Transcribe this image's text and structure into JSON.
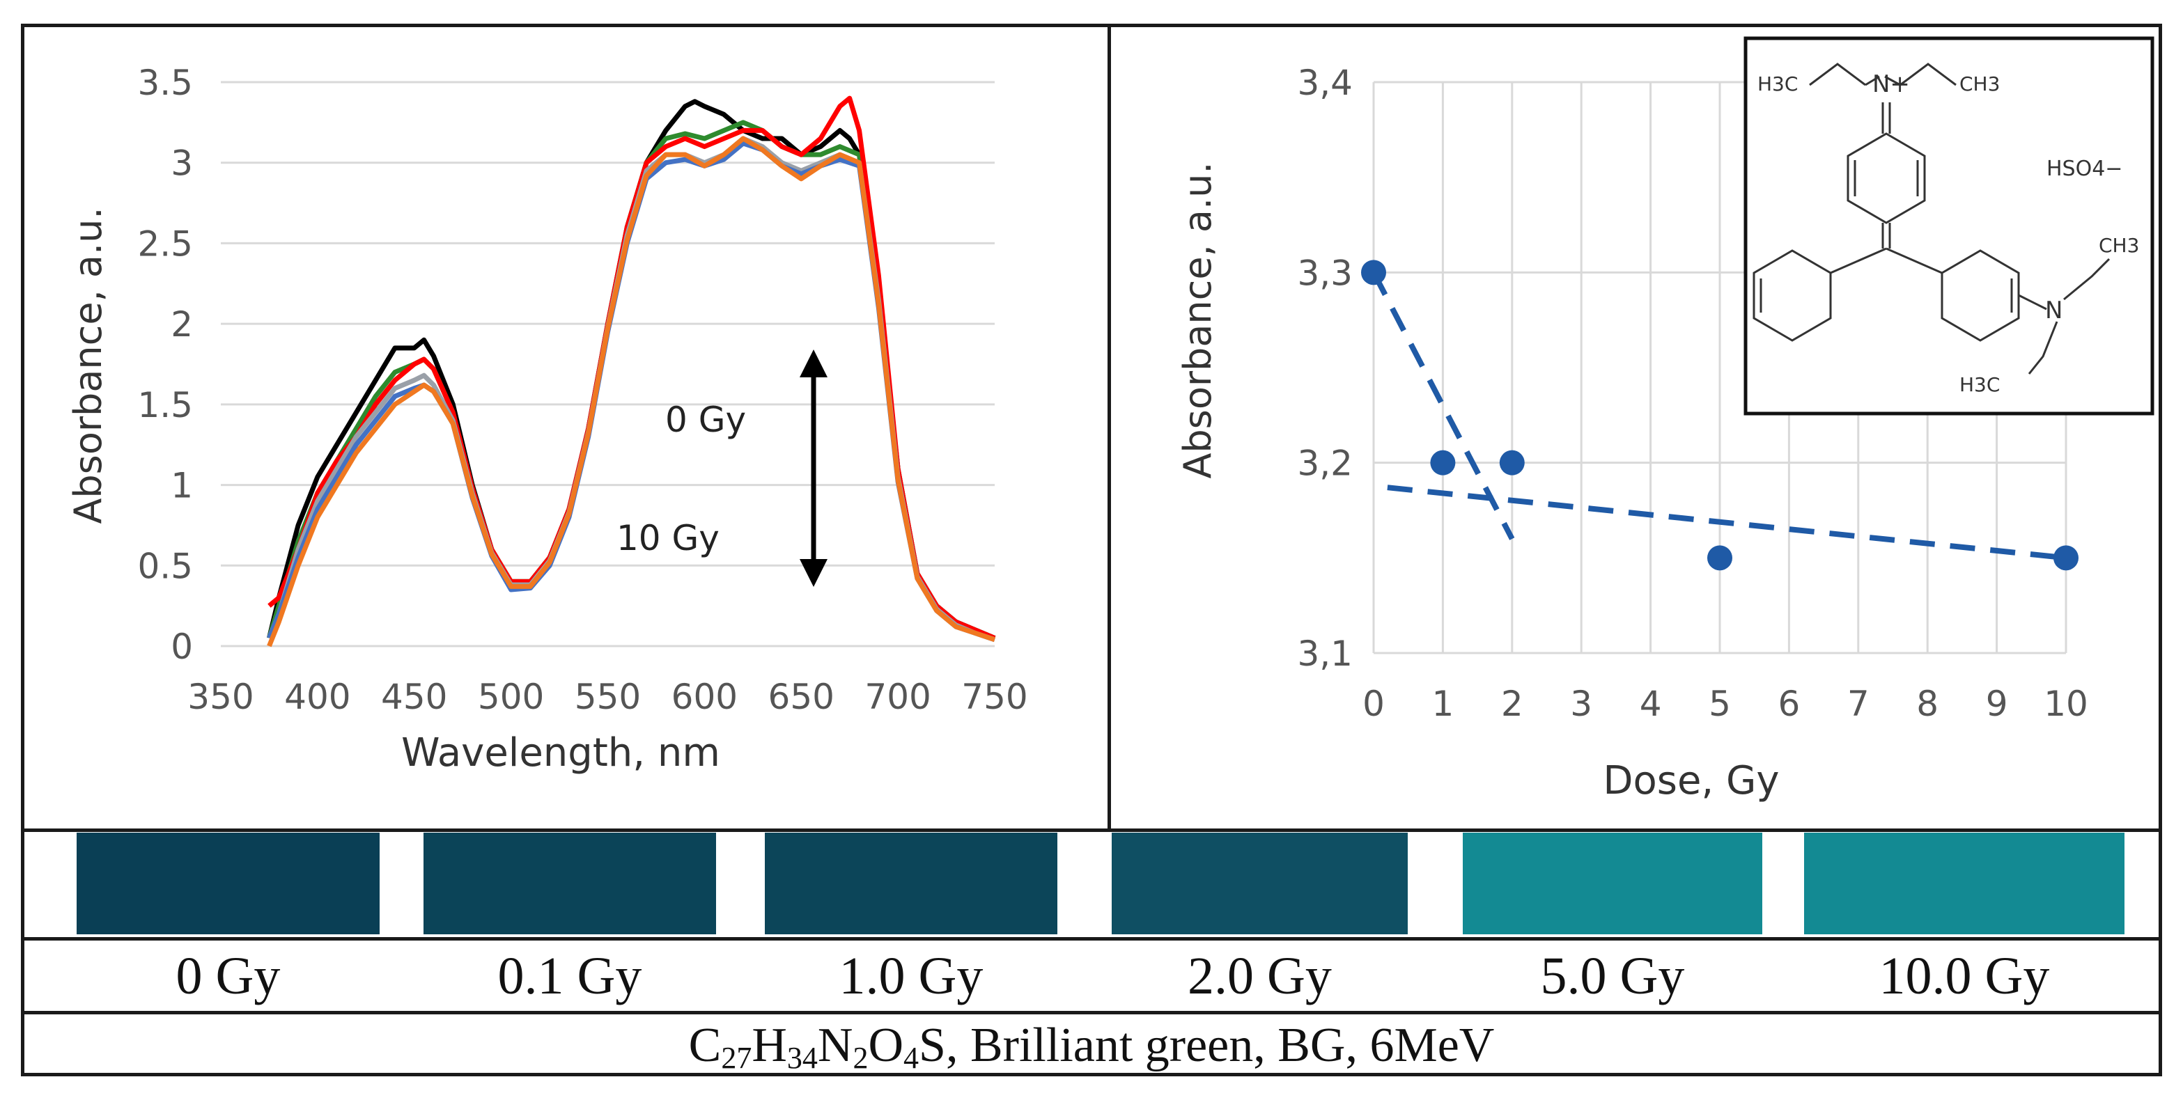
{
  "chart_data": [
    {
      "type": "line",
      "title": "",
      "xlabel": "Wavelength, nm",
      "ylabel": "Absorbance, a.u.",
      "xlim": [
        350,
        750
      ],
      "ylim": [
        0,
        3.5
      ],
      "xticks": [
        "350",
        "400",
        "450",
        "500",
        "550",
        "600",
        "650",
        "700",
        "750"
      ],
      "yticks": [
        "0",
        "0.5",
        "1",
        "1.5",
        "2",
        "2.5",
        "3",
        "3.5"
      ],
      "annotations": {
        "top": "0 Gy",
        "bottom": "10 Gy"
      },
      "series": [
        {
          "name": "0 Gy",
          "color": "#000000",
          "x": [
            375,
            380,
            390,
            400,
            410,
            420,
            430,
            440,
            450,
            455,
            460,
            470,
            480,
            490,
            500,
            510,
            520,
            530,
            540,
            550,
            560,
            570,
            580,
            590,
            595,
            600,
            610,
            620,
            630,
            640,
            650,
            660,
            670,
            675,
            680,
            690,
            700,
            710,
            720,
            730,
            740,
            750
          ],
          "values": [
            0.05,
            0.3,
            0.75,
            1.05,
            1.25,
            1.45,
            1.65,
            1.85,
            1.85,
            1.9,
            1.8,
            1.5,
            1.0,
            0.6,
            0.4,
            0.4,
            0.55,
            0.85,
            1.35,
            2.0,
            2.6,
            3.0,
            3.2,
            3.35,
            3.38,
            3.35,
            3.3,
            3.2,
            3.15,
            3.15,
            3.05,
            3.1,
            3.2,
            3.15,
            3.05,
            2.2,
            1.1,
            0.45,
            0.25,
            0.15,
            0.1,
            0.05
          ]
        },
        {
          "name": "0.1 Gy",
          "color": "#2e8b2e",
          "x": [
            375,
            380,
            390,
            400,
            410,
            420,
            430,
            440,
            450,
            455,
            460,
            470,
            480,
            490,
            500,
            510,
            520,
            530,
            540,
            550,
            560,
            570,
            580,
            590,
            600,
            610,
            620,
            630,
            640,
            650,
            660,
            670,
            680,
            690,
            700,
            710,
            720,
            730,
            740,
            750
          ],
          "values": [
            0.05,
            0.25,
            0.65,
            0.95,
            1.15,
            1.35,
            1.55,
            1.7,
            1.75,
            1.78,
            1.72,
            1.45,
            0.98,
            0.6,
            0.4,
            0.4,
            0.55,
            0.85,
            1.35,
            2.0,
            2.6,
            3.0,
            3.15,
            3.18,
            3.15,
            3.2,
            3.25,
            3.2,
            3.1,
            3.05,
            3.05,
            3.1,
            3.05,
            2.2,
            1.1,
            0.45,
            0.25,
            0.15,
            0.1,
            0.05
          ]
        },
        {
          "name": "1.0 Gy",
          "color": "#ff0000",
          "x": [
            375,
            380,
            390,
            400,
            410,
            420,
            430,
            440,
            450,
            455,
            460,
            470,
            480,
            490,
            500,
            510,
            520,
            530,
            540,
            550,
            560,
            570,
            580,
            590,
            600,
            610,
            620,
            630,
            640,
            650,
            660,
            670,
            675,
            680,
            690,
            700,
            710,
            720,
            730,
            740,
            750
          ],
          "values": [
            0.25,
            0.3,
            0.6,
            0.95,
            1.15,
            1.3,
            1.5,
            1.65,
            1.75,
            1.78,
            1.72,
            1.45,
            0.98,
            0.6,
            0.4,
            0.4,
            0.55,
            0.85,
            1.35,
            2.0,
            2.6,
            3.0,
            3.1,
            3.15,
            3.1,
            3.15,
            3.2,
            3.2,
            3.1,
            3.05,
            3.15,
            3.35,
            3.4,
            3.2,
            2.3,
            1.1,
            0.45,
            0.25,
            0.15,
            0.1,
            0.05
          ]
        },
        {
          "name": "2.0 Gy",
          "color": "#9aa0a8",
          "x": [
            375,
            380,
            390,
            400,
            410,
            420,
            430,
            440,
            450,
            455,
            460,
            470,
            480,
            490,
            500,
            510,
            520,
            530,
            540,
            550,
            560,
            570,
            580,
            590,
            600,
            610,
            620,
            630,
            640,
            650,
            660,
            670,
            680,
            690,
            700,
            710,
            720,
            730,
            740,
            750
          ],
          "values": [
            0.05,
            0.2,
            0.6,
            0.9,
            1.1,
            1.3,
            1.45,
            1.6,
            1.65,
            1.68,
            1.62,
            1.4,
            0.95,
            0.58,
            0.38,
            0.38,
            0.53,
            0.83,
            1.33,
            1.98,
            2.55,
            2.95,
            3.05,
            3.05,
            3.0,
            3.05,
            3.15,
            3.1,
            3.0,
            2.95,
            3.0,
            3.05,
            3.0,
            2.15,
            1.05,
            0.43,
            0.23,
            0.13,
            0.08,
            0.04
          ]
        },
        {
          "name": "5.0 Gy",
          "color": "#4472c4",
          "x": [
            375,
            380,
            390,
            400,
            410,
            420,
            430,
            440,
            450,
            455,
            460,
            470,
            480,
            490,
            500,
            510,
            520,
            530,
            540,
            550,
            560,
            570,
            580,
            590,
            600,
            610,
            620,
            630,
            640,
            650,
            660,
            670,
            680,
            690,
            700,
            710,
            720,
            730,
            740,
            750
          ],
          "values": [
            0.05,
            0.2,
            0.55,
            0.85,
            1.05,
            1.25,
            1.4,
            1.55,
            1.6,
            1.62,
            1.58,
            1.38,
            0.92,
            0.56,
            0.35,
            0.36,
            0.5,
            0.8,
            1.3,
            1.95,
            2.5,
            2.9,
            3.0,
            3.02,
            2.98,
            3.02,
            3.12,
            3.08,
            2.98,
            2.93,
            2.98,
            3.02,
            2.98,
            2.1,
            1.02,
            0.42,
            0.22,
            0.12,
            0.08,
            0.04
          ]
        },
        {
          "name": "10.0 Gy",
          "color": "#f07820",
          "x": [
            375,
            380,
            390,
            400,
            410,
            420,
            430,
            440,
            450,
            455,
            460,
            470,
            480,
            490,
            500,
            510,
            520,
            530,
            540,
            550,
            560,
            570,
            580,
            590,
            600,
            610,
            620,
            630,
            640,
            650,
            660,
            670,
            680,
            690,
            700,
            710,
            720,
            730,
            740,
            750
          ],
          "values": [
            0.0,
            0.15,
            0.5,
            0.8,
            1.0,
            1.2,
            1.35,
            1.5,
            1.58,
            1.62,
            1.58,
            1.38,
            0.93,
            0.57,
            0.37,
            0.37,
            0.52,
            0.82,
            1.32,
            1.97,
            2.52,
            2.92,
            3.05,
            3.05,
            2.98,
            3.05,
            3.15,
            3.08,
            2.98,
            2.9,
            2.98,
            3.05,
            3.0,
            2.12,
            1.03,
            0.42,
            0.22,
            0.12,
            0.08,
            0.04
          ]
        }
      ]
    },
    {
      "type": "scatter",
      "title": "",
      "xlabel": "Dose, Gy",
      "ylabel": "Absorbance, a.u.",
      "xlim": [
        0,
        10
      ],
      "ylim": [
        3.1,
        3.4
      ],
      "xticks": [
        "0",
        "1",
        "2",
        "3",
        "4",
        "5",
        "6",
        "7",
        "8",
        "9",
        "10"
      ],
      "yticks": [
        "3,1",
        "3,2",
        "3,3",
        "3,4"
      ],
      "color": "#1f5aa6",
      "points": {
        "x": [
          0,
          1,
          2,
          5,
          10
        ],
        "y": [
          3.3,
          3.2,
          3.2,
          3.15,
          3.15
        ]
      },
      "trendlines": [
        {
          "x": [
            0,
            2
          ],
          "y": [
            3.3,
            3.16
          ]
        },
        {
          "x": [
            0.2,
            10
          ],
          "y": [
            3.187,
            3.15
          ]
        }
      ]
    }
  ],
  "structure_image": {
    "labels": [
      "H3C",
      "N+",
      "CH3",
      "HSO4−",
      "CH3",
      "N",
      "H3C"
    ]
  },
  "swatches": [
    {
      "color": "#0a3f55"
    },
    {
      "color": "#0b4458"
    },
    {
      "color": "#0c4559"
    },
    {
      "color": "#0f4f63"
    },
    {
      "color": "#138a93"
    },
    {
      "color": "#138a93"
    }
  ],
  "dose_labels": [
    "0 Gy",
    "0.1 Gy",
    "1.0 Gy",
    "2.0 Gy",
    "5.0 Gy",
    "10.0 Gy"
  ],
  "caption": {
    "formula": [
      {
        "t": "C",
        "s": "27"
      },
      {
        "t": "H",
        "s": "34"
      },
      {
        "t": "N",
        "s": "2"
      },
      {
        "t": "O",
        "s": "4"
      },
      {
        "t": "S",
        "s": ""
      }
    ],
    "rest": ", Brilliant green, BG, 6MeV"
  }
}
